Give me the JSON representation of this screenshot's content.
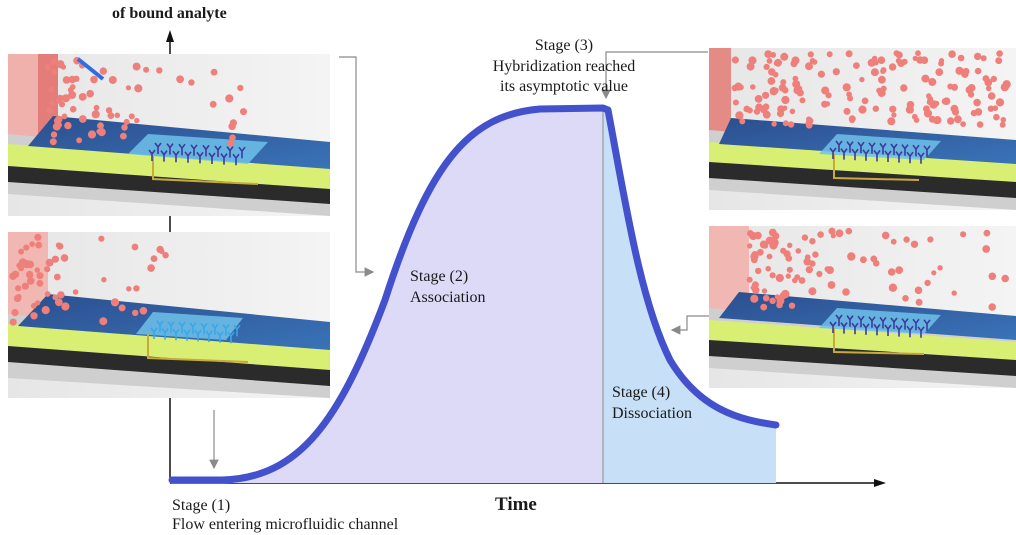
{
  "y_axis_label": "of bound analyte",
  "x_axis_label": "Time",
  "stages": [
    {
      "id": 1,
      "title": "Stage (1)",
      "description": "Flow entering microfluidic channel"
    },
    {
      "id": 2,
      "title": "Stage (2)",
      "description": "Association"
    },
    {
      "id": 3,
      "title": "Stage (3)",
      "description_lines": [
        "Hybridization reached",
        "its asymptotic value"
      ]
    },
    {
      "id": 4,
      "title": "Stage (4)",
      "description": "Dissociation"
    }
  ],
  "colors": {
    "curve": "#4451cc",
    "association_fill": "#dcdaf7",
    "dissociation_fill": "#c7e0f7",
    "particle": "#ef7f7a",
    "channel_water": "#2f5fa6",
    "channel_rail": "#d9ef73",
    "sensor_pad": "#6fc1ea",
    "probe_free": "#3aa7e6",
    "probe_bound": "#3d3a9c",
    "arrow": "#8a8a8a"
  },
  "icons": [
    "stage-1-illustration",
    "stage-2-illustration",
    "stage-3-illustration",
    "stage-4-illustration"
  ]
}
